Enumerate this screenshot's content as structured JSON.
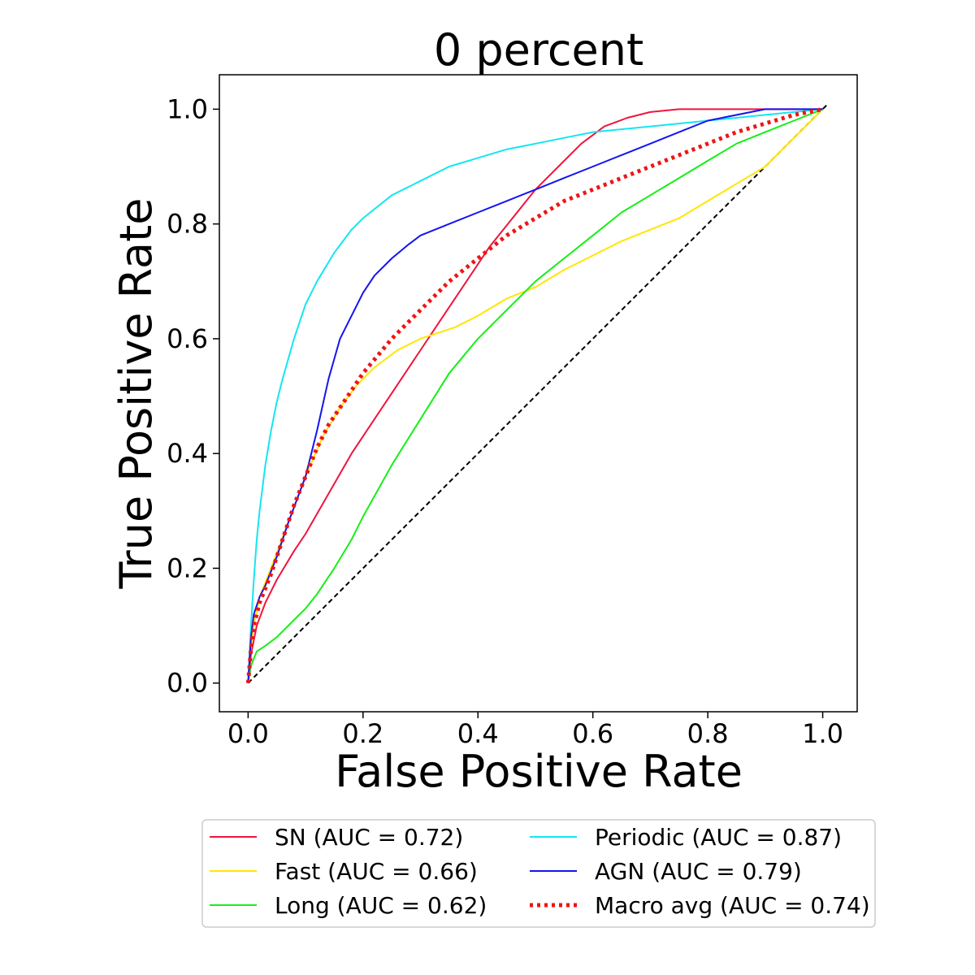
{
  "chart_data": {
    "type": "line",
    "title": "0 percent",
    "xlabel": "False Positive Rate",
    "ylabel": "True Positive Rate",
    "xlim": [
      -0.05,
      1.06
    ],
    "ylim": [
      -0.05,
      1.06
    ],
    "xticks": [
      "0.0",
      "0.2",
      "0.4",
      "0.6",
      "0.8",
      "1.0"
    ],
    "yticks": [
      "0.0",
      "0.2",
      "0.4",
      "0.6",
      "0.8",
      "1.0"
    ],
    "grid": false,
    "legend_position": "bottom-center",
    "series": [
      {
        "name": "SN (AUC = 0.72)",
        "color": "#f0143c",
        "style": "solid",
        "x": [
          0.0,
          0.005,
          0.015,
          0.03,
          0.05,
          0.08,
          0.1,
          0.14,
          0.18,
          0.22,
          0.26,
          0.3,
          0.34,
          0.38,
          0.42,
          0.46,
          0.5,
          0.54,
          0.58,
          0.62,
          0.66,
          0.7,
          0.75,
          0.8,
          0.85,
          0.9,
          1.0
        ],
        "y": [
          0.0,
          0.05,
          0.1,
          0.14,
          0.18,
          0.23,
          0.26,
          0.33,
          0.4,
          0.46,
          0.52,
          0.58,
          0.64,
          0.7,
          0.76,
          0.81,
          0.86,
          0.9,
          0.94,
          0.97,
          0.985,
          0.995,
          1.0,
          1.0,
          1.0,
          1.0,
          1.0
        ]
      },
      {
        "name": "Fast (AUC = 0.66)",
        "color": "#ffe600",
        "style": "solid",
        "x": [
          0.0,
          0.003,
          0.01,
          0.02,
          0.04,
          0.07,
          0.1,
          0.13,
          0.16,
          0.19,
          0.22,
          0.26,
          0.3,
          0.36,
          0.4,
          0.45,
          0.5,
          0.55,
          0.6,
          0.65,
          0.7,
          0.75,
          0.8,
          0.85,
          0.9,
          0.95,
          1.0
        ],
        "y": [
          0.0,
          0.05,
          0.1,
          0.15,
          0.2,
          0.28,
          0.36,
          0.43,
          0.48,
          0.52,
          0.55,
          0.58,
          0.6,
          0.62,
          0.64,
          0.67,
          0.69,
          0.72,
          0.745,
          0.77,
          0.79,
          0.81,
          0.84,
          0.87,
          0.9,
          0.95,
          1.0
        ]
      },
      {
        "name": "Long (AUC = 0.62)",
        "color": "#14f014",
        "style": "solid",
        "x": [
          0.0,
          0.005,
          0.015,
          0.03,
          0.05,
          0.08,
          0.1,
          0.12,
          0.15,
          0.18,
          0.2,
          0.25,
          0.3,
          0.35,
          0.4,
          0.45,
          0.5,
          0.55,
          0.6,
          0.65,
          0.7,
          0.75,
          0.8,
          0.85,
          0.9,
          0.95,
          1.0
        ],
        "y": [
          0.0,
          0.03,
          0.055,
          0.065,
          0.08,
          0.11,
          0.13,
          0.155,
          0.2,
          0.25,
          0.29,
          0.38,
          0.46,
          0.54,
          0.6,
          0.65,
          0.7,
          0.74,
          0.78,
          0.82,
          0.85,
          0.88,
          0.91,
          0.94,
          0.96,
          0.98,
          1.0
        ]
      },
      {
        "name": "Periodic (AUC = 0.87)",
        "color": "#14e6f0",
        "style": "solid",
        "x": [
          0.0,
          0.005,
          0.01,
          0.015,
          0.02,
          0.03,
          0.04,
          0.05,
          0.06,
          0.08,
          0.1,
          0.12,
          0.15,
          0.18,
          0.2,
          0.25,
          0.3,
          0.35,
          0.4,
          0.45,
          0.5,
          0.55,
          0.6,
          0.65,
          0.7,
          0.8,
          0.9,
          1.0
        ],
        "y": [
          0.0,
          0.1,
          0.18,
          0.25,
          0.3,
          0.38,
          0.44,
          0.49,
          0.53,
          0.6,
          0.66,
          0.7,
          0.75,
          0.79,
          0.81,
          0.85,
          0.875,
          0.9,
          0.915,
          0.93,
          0.94,
          0.95,
          0.96,
          0.965,
          0.97,
          0.98,
          0.99,
          1.0
        ]
      },
      {
        "name": "AGN (AUC = 0.79)",
        "color": "#1414f0",
        "style": "solid",
        "x": [
          0.0,
          0.005,
          0.01,
          0.02,
          0.03,
          0.05,
          0.07,
          0.1,
          0.12,
          0.14,
          0.16,
          0.18,
          0.2,
          0.22,
          0.25,
          0.28,
          0.3,
          0.35,
          0.4,
          0.45,
          0.5,
          0.55,
          0.6,
          0.65,
          0.7,
          0.75,
          0.8,
          0.9,
          1.0
        ],
        "y": [
          0.0,
          0.08,
          0.12,
          0.15,
          0.17,
          0.22,
          0.28,
          0.36,
          0.44,
          0.53,
          0.6,
          0.64,
          0.68,
          0.71,
          0.74,
          0.765,
          0.78,
          0.8,
          0.82,
          0.84,
          0.86,
          0.88,
          0.9,
          0.92,
          0.94,
          0.96,
          0.98,
          1.0,
          1.0
        ]
      },
      {
        "name": "Macro avg (AUC = 0.74)",
        "color": "#f01414",
        "style": "dotted",
        "x": [
          0.0,
          0.005,
          0.01,
          0.02,
          0.04,
          0.06,
          0.08,
          0.1,
          0.12,
          0.14,
          0.16,
          0.18,
          0.2,
          0.25,
          0.3,
          0.35,
          0.4,
          0.45,
          0.5,
          0.55,
          0.6,
          0.65,
          0.7,
          0.75,
          0.8,
          0.85,
          0.9,
          0.95,
          1.0
        ],
        "y": [
          0.0,
          0.06,
          0.1,
          0.14,
          0.19,
          0.25,
          0.31,
          0.36,
          0.41,
          0.45,
          0.48,
          0.51,
          0.54,
          0.6,
          0.65,
          0.7,
          0.74,
          0.78,
          0.81,
          0.84,
          0.86,
          0.88,
          0.9,
          0.92,
          0.94,
          0.96,
          0.975,
          0.99,
          1.0
        ]
      },
      {
        "name": "",
        "color": "#000000",
        "style": "dashed",
        "x": [
          0.0,
          1.01
        ],
        "y": [
          0.0,
          1.01
        ]
      }
    ]
  }
}
